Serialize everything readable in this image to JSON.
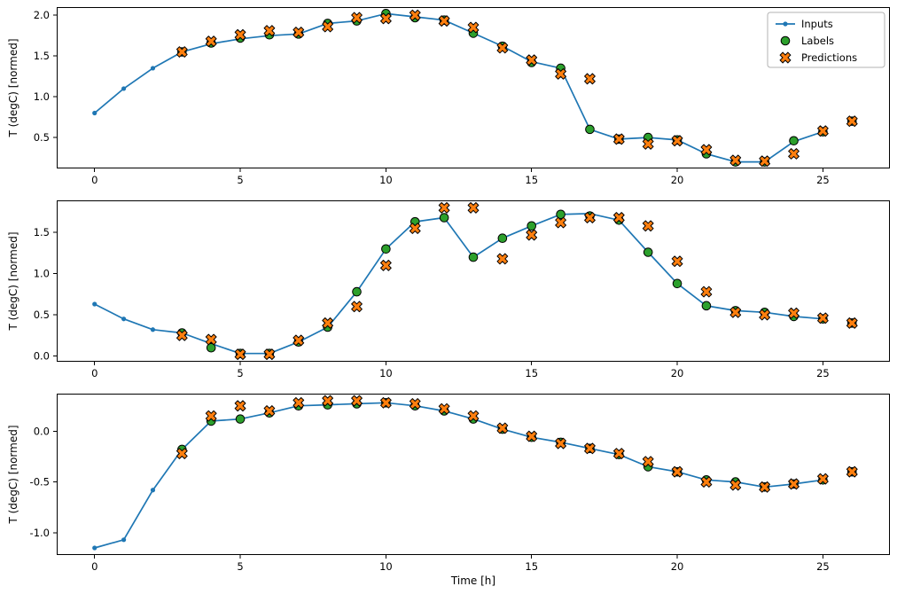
{
  "figure": {
    "xlabel": "Time [h]",
    "ylabel": "T (degC) [normed]",
    "legend": {
      "items": [
        "Inputs",
        "Labels",
        "Predictions"
      ]
    },
    "colors": {
      "inputs": "#1f77b4",
      "labels": "#2ca02c",
      "predictions": "#ff7f0e",
      "marker_edge": "#000000",
      "frame": "#000000",
      "legend_border": "#b3b3b3"
    }
  },
  "chart_data": [
    {
      "type": "line",
      "title": "",
      "xlabel": "",
      "ylabel": "T (degC) [normed]",
      "xlim": [
        -1.3,
        27.3
      ],
      "ylim": [
        0.12,
        2.1
      ],
      "xticks": [
        0,
        5,
        10,
        15,
        20,
        25
      ],
      "xtick_labels": [
        "0",
        "5",
        "10",
        "15",
        "20",
        "25"
      ],
      "yticks": [
        0.5,
        1.0,
        1.5,
        2.0
      ],
      "ytick_labels": [
        "0.5",
        "1.0",
        "1.5",
        "2.0"
      ],
      "legend": true,
      "series": [
        {
          "name": "Inputs",
          "style": "line-dot",
          "x": [
            0,
            1,
            2,
            3,
            4,
            5,
            6,
            7,
            8,
            9,
            10,
            11,
            12,
            13,
            14,
            15,
            16,
            17,
            18,
            19,
            20,
            21,
            22,
            23,
            24,
            25
          ],
          "y": [
            0.8,
            1.1,
            1.35,
            1.55,
            1.65,
            1.71,
            1.75,
            1.77,
            1.9,
            1.93,
            2.02,
            1.98,
            1.94,
            1.78,
            1.62,
            1.43,
            1.35,
            0.6,
            0.48,
            0.5,
            0.47,
            0.3,
            0.2,
            0.2,
            0.45,
            0.57
          ]
        },
        {
          "name": "Labels",
          "style": "circle",
          "x": [
            3,
            4,
            5,
            6,
            7,
            8,
            9,
            10,
            11,
            12,
            13,
            14,
            15,
            16,
            17,
            18,
            19,
            20,
            21,
            22,
            23,
            24,
            25,
            26
          ],
          "y": [
            1.55,
            1.66,
            1.72,
            1.76,
            1.77,
            1.9,
            1.93,
            2.02,
            1.97,
            1.94,
            1.78,
            1.62,
            1.42,
            1.35,
            0.6,
            0.48,
            0.5,
            0.47,
            0.3,
            0.2,
            0.2,
            0.46,
            0.57,
            0.7
          ]
        },
        {
          "name": "Predictions",
          "style": "x",
          "x": [
            3,
            4,
            5,
            6,
            7,
            8,
            9,
            10,
            11,
            12,
            13,
            14,
            15,
            16,
            17,
            18,
            19,
            20,
            21,
            22,
            23,
            24,
            25,
            26
          ],
          "y": [
            1.55,
            1.68,
            1.76,
            1.81,
            1.79,
            1.86,
            1.97,
            1.96,
            2.0,
            1.93,
            1.85,
            1.6,
            1.45,
            1.28,
            1.22,
            0.48,
            0.42,
            0.46,
            0.35,
            0.22,
            0.21,
            0.3,
            0.58,
            0.7
          ]
        }
      ]
    },
    {
      "type": "line",
      "title": "",
      "xlabel": "",
      "ylabel": "T (degC) [normed]",
      "xlim": [
        -1.3,
        27.3
      ],
      "ylim": [
        -0.07,
        1.89
      ],
      "xticks": [
        0,
        5,
        10,
        15,
        20,
        25
      ],
      "xtick_labels": [
        "0",
        "5",
        "10",
        "15",
        "20",
        "25"
      ],
      "yticks": [
        0.0,
        0.5,
        1.0,
        1.5
      ],
      "ytick_labels": [
        "0.0",
        "0.5",
        "1.0",
        "1.5"
      ],
      "legend": false,
      "series": [
        {
          "name": "Inputs",
          "style": "line-dot",
          "x": [
            0,
            1,
            2,
            3,
            4,
            5,
            6,
            7,
            8,
            9,
            10,
            11,
            12,
            13,
            14,
            15,
            16,
            17,
            18,
            19,
            20,
            21,
            22,
            23,
            24,
            25
          ],
          "y": [
            0.63,
            0.45,
            0.32,
            0.28,
            0.15,
            0.03,
            0.03,
            0.17,
            0.35,
            0.78,
            1.3,
            1.63,
            1.68,
            1.2,
            1.43,
            1.58,
            1.72,
            1.73,
            1.65,
            1.26,
            0.88,
            0.61,
            0.55,
            0.53,
            0.48,
            0.45
          ]
        },
        {
          "name": "Labels",
          "style": "circle",
          "x": [
            3,
            4,
            5,
            6,
            7,
            8,
            9,
            10,
            11,
            12,
            13,
            14,
            15,
            16,
            17,
            18,
            19,
            20,
            21,
            22,
            23,
            24,
            25,
            26
          ],
          "y": [
            0.28,
            0.1,
            0.03,
            0.03,
            0.17,
            0.35,
            0.78,
            1.3,
            1.63,
            1.68,
            1.2,
            1.43,
            1.58,
            1.72,
            1.7,
            1.65,
            1.26,
            0.88,
            0.61,
            0.55,
            0.53,
            0.48,
            0.45,
            0.4
          ]
        },
        {
          "name": "Predictions",
          "style": "x",
          "x": [
            3,
            4,
            5,
            6,
            7,
            8,
            9,
            10,
            11,
            12,
            13,
            14,
            15,
            16,
            17,
            18,
            19,
            20,
            21,
            22,
            23,
            24,
            25,
            26
          ],
          "y": [
            0.25,
            0.2,
            0.02,
            0.02,
            0.19,
            0.4,
            0.6,
            1.1,
            1.55,
            1.8,
            1.8,
            1.18,
            1.47,
            1.62,
            1.68,
            1.68,
            1.58,
            1.15,
            0.78,
            0.53,
            0.5,
            0.52,
            0.46,
            0.4
          ]
        }
      ]
    },
    {
      "type": "line",
      "title": "",
      "xlabel": "Time [h]",
      "ylabel": "T (degC) [normed]",
      "xlim": [
        -1.3,
        27.3
      ],
      "ylim": [
        -1.22,
        0.37
      ],
      "xticks": [
        0,
        5,
        10,
        15,
        20,
        25
      ],
      "xtick_labels": [
        "0",
        "5",
        "10",
        "15",
        "20",
        "25"
      ],
      "yticks": [
        -1.0,
        -0.5,
        0.0
      ],
      "ytick_labels": [
        "-1.0",
        "-0.5",
        "0.0"
      ],
      "legend": false,
      "series": [
        {
          "name": "Inputs",
          "style": "line-dot",
          "x": [
            0,
            1,
            2,
            3,
            4,
            5,
            6,
            7,
            8,
            9,
            10,
            11,
            12,
            13,
            14,
            15,
            16,
            17,
            18,
            19,
            20,
            21,
            22,
            23,
            24,
            25
          ],
          "y": [
            -1.15,
            -1.07,
            -0.58,
            -0.18,
            0.1,
            0.12,
            0.18,
            0.25,
            0.26,
            0.27,
            0.28,
            0.25,
            0.2,
            0.12,
            0.02,
            -0.06,
            -0.11,
            -0.17,
            -0.23,
            -0.35,
            -0.4,
            -0.48,
            -0.5,
            -0.55,
            -0.52,
            -0.48
          ]
        },
        {
          "name": "Labels",
          "style": "circle",
          "x": [
            3,
            4,
            5,
            6,
            7,
            8,
            9,
            10,
            11,
            12,
            13,
            14,
            15,
            16,
            17,
            18,
            19,
            20,
            21,
            22,
            23,
            24,
            25,
            26
          ],
          "y": [
            -0.18,
            0.1,
            0.12,
            0.18,
            0.25,
            0.26,
            0.27,
            0.28,
            0.25,
            0.2,
            0.12,
            0.02,
            -0.06,
            -0.11,
            -0.17,
            -0.23,
            -0.35,
            -0.4,
            -0.48,
            -0.5,
            -0.55,
            -0.52,
            -0.48,
            -0.4
          ]
        },
        {
          "name": "Predictions",
          "style": "x",
          "x": [
            3,
            4,
            5,
            6,
            7,
            8,
            9,
            10,
            11,
            12,
            13,
            14,
            15,
            16,
            17,
            18,
            19,
            20,
            21,
            22,
            23,
            24,
            25,
            26
          ],
          "y": [
            -0.22,
            0.15,
            0.25,
            0.2,
            0.28,
            0.3,
            0.3,
            0.28,
            0.27,
            0.22,
            0.15,
            0.03,
            -0.05,
            -0.12,
            -0.17,
            -0.22,
            -0.3,
            -0.4,
            -0.5,
            -0.53,
            -0.55,
            -0.52,
            -0.47,
            -0.4
          ]
        }
      ]
    }
  ]
}
